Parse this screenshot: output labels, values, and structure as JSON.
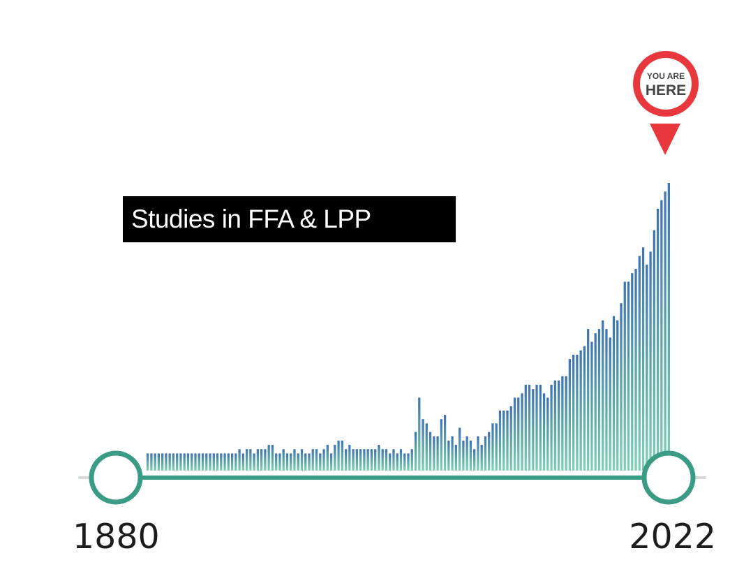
{
  "chart_data": {
    "type": "bar",
    "title": "Studies in FFA & LPP",
    "x": [
      1880,
      1881,
      1882,
      1883,
      1884,
      1885,
      1886,
      1887,
      1888,
      1889,
      1890,
      1891,
      1892,
      1893,
      1894,
      1895,
      1896,
      1897,
      1898,
      1899,
      1900,
      1901,
      1902,
      1903,
      1904,
      1905,
      1906,
      1907,
      1908,
      1909,
      1910,
      1911,
      1912,
      1913,
      1914,
      1915,
      1916,
      1917,
      1918,
      1919,
      1920,
      1921,
      1922,
      1923,
      1924,
      1925,
      1926,
      1927,
      1928,
      1929,
      1930,
      1931,
      1932,
      1933,
      1934,
      1935,
      1936,
      1937,
      1938,
      1939,
      1940,
      1941,
      1942,
      1943,
      1944,
      1945,
      1946,
      1947,
      1948,
      1949,
      1950,
      1951,
      1952,
      1953,
      1954,
      1955,
      1956,
      1957,
      1958,
      1959,
      1960,
      1961,
      1962,
      1963,
      1964,
      1965,
      1966,
      1967,
      1968,
      1969,
      1970,
      1971,
      1972,
      1973,
      1974,
      1975,
      1976,
      1977,
      1978,
      1979,
      1980,
      1981,
      1982,
      1983,
      1984,
      1985,
      1986,
      1987,
      1988,
      1989,
      1990,
      1991,
      1992,
      1993,
      1994,
      1995,
      1996,
      1997,
      1998,
      1999,
      2000,
      2001,
      2002,
      2003,
      2004,
      2005,
      2006,
      2007,
      2008,
      2009,
      2010,
      2011,
      2012,
      2013,
      2014,
      2015,
      2016,
      2017,
      2018,
      2019,
      2020,
      2021,
      2022
    ],
    "values": [
      4,
      4,
      4,
      4,
      4,
      4,
      4,
      4,
      4,
      4,
      4,
      4,
      4,
      4,
      4,
      4,
      4,
      4,
      4,
      4,
      4,
      4,
      4,
      4,
      4,
      5,
      4,
      5,
      5,
      4,
      5,
      5,
      5,
      6,
      6,
      4,
      4,
      5,
      4,
      4,
      5,
      4,
      5,
      4,
      4,
      5,
      5,
      4,
      5,
      6,
      4,
      6,
      7,
      7,
      5,
      6,
      5,
      5,
      5,
      5,
      5,
      5,
      5,
      6,
      5,
      5,
      4,
      5,
      4,
      5,
      4,
      4,
      5,
      9,
      17,
      12,
      11,
      9,
      8,
      8,
      12,
      13,
      7,
      8,
      6,
      10,
      7,
      8,
      7,
      5,
      8,
      6,
      8,
      9,
      11,
      11,
      14,
      14,
      14,
      15,
      17,
      17,
      18,
      20,
      20,
      19,
      20,
      20,
      18,
      17,
      20,
      21,
      21,
      22,
      22,
      26,
      27,
      27,
      28,
      29,
      33,
      30,
      32,
      33,
      35,
      33,
      31,
      36,
      35,
      39,
      44,
      44,
      46,
      47,
      50,
      52,
      48,
      51,
      56,
      61,
      63,
      65,
      67
    ],
    "xlim": [
      1880,
      2022
    ],
    "annotation": {
      "top": "YOU ARE",
      "bottom": "HERE"
    },
    "colors": {
      "bar_low": "#7fd0b6",
      "bar_high": "#3e73b2",
      "track": "#3a9c84",
      "pin": "#e8373d"
    }
  }
}
